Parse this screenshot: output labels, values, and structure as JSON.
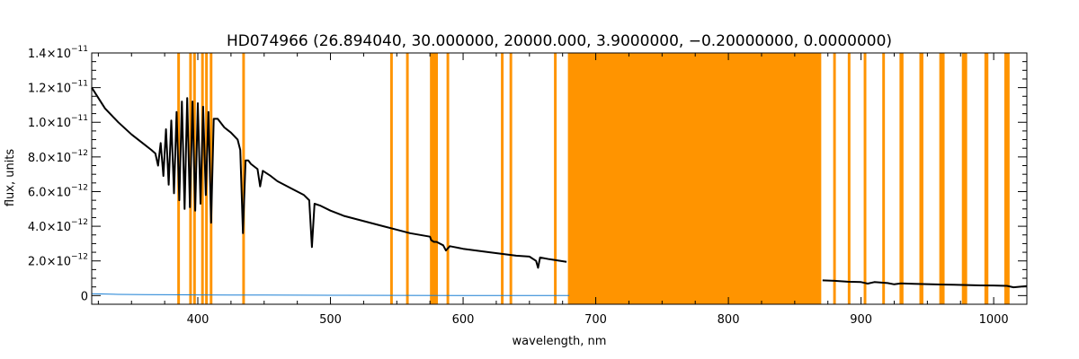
{
  "chart_data": {
    "type": "line",
    "title": "HD074966   (26.894040, 30.000000, 20000.000, 3.9000000, −0.20000000, 0.0000000)",
    "xlabel": "wavelength, nm",
    "ylabel": "flux, units",
    "xlim": [
      320,
      1025
    ],
    "ylim": [
      -5e-13,
      1.4e-11
    ],
    "x_ticks": [
      400,
      500,
      600,
      700,
      800,
      900,
      1000
    ],
    "x_tick_labels": [
      "400",
      "500",
      "600",
      "700",
      "800",
      "900",
      "1000"
    ],
    "y_ticks": [
      0,
      2e-12,
      4e-12,
      6e-12,
      8e-12,
      1e-11,
      1.2e-11,
      1.4e-11
    ],
    "y_tick_labels": [
      {
        "mant": "0",
        "exp": ""
      },
      {
        "mant": "2.0×10",
        "exp": "−12"
      },
      {
        "mant": "4.0×10",
        "exp": "−12"
      },
      {
        "mant": "6.0×10",
        "exp": "−12"
      },
      {
        "mant": "8.0×10",
        "exp": "−12"
      },
      {
        "mant": "1.0×10",
        "exp": "−11"
      },
      {
        "mant": "1.2×10",
        "exp": "−11"
      },
      {
        "mant": "1.4×10",
        "exp": "−11"
      }
    ],
    "colors": {
      "flux": "#000000",
      "error": "#1a7fd4",
      "mask": "#ff9400",
      "frame": "#000000"
    },
    "masked_regions": [
      [
        384.5,
        386.5
      ],
      [
        393.5,
        395.5
      ],
      [
        396.5,
        398.5
      ],
      [
        402.5,
        404.5
      ],
      [
        405.5,
        407.5
      ],
      [
        409,
        411
      ],
      [
        433.5,
        435.5
      ],
      [
        545,
        547
      ],
      [
        557,
        559
      ],
      [
        575,
        581
      ],
      [
        587.5,
        589.5
      ],
      [
        628.5,
        630.5
      ],
      [
        635,
        637
      ],
      [
        668.5,
        670.5
      ],
      [
        679,
        870
      ],
      [
        879,
        881
      ],
      [
        890,
        892
      ],
      [
        902,
        904
      ],
      [
        916,
        918
      ],
      [
        929,
        932
      ],
      [
        944,
        947
      ],
      [
        959,
        963
      ],
      [
        976,
        980
      ],
      [
        993,
        996
      ],
      [
        1008,
        1012
      ]
    ],
    "series": [
      {
        "role": "flux",
        "segments": [
          {
            "x": [
              320,
              330,
              340,
              350,
              360,
              365,
              368,
              370,
              372,
              374,
              376,
              378,
              380,
              382,
              384,
              386,
              388,
              390,
              392,
              394,
              396,
              398,
              400,
              402,
              404,
              406,
              408,
              410,
              412,
              415,
              420,
              425,
              430,
              432,
              434,
              436,
              438,
              440,
              445,
              447,
              449,
              455,
              460,
              470,
              480,
              484,
              486,
              488,
              492,
              500,
              510,
              520,
              540,
              560,
              575,
              576,
              578,
              580,
              585,
              587,
              590,
              600,
              620,
              640,
              650,
              655,
              656.5,
              658,
              665,
              678
            ],
            "y": [
              1.2e-11,
              1.08e-11,
              1e-11,
              9.3e-12,
              8.7e-12,
              8.4e-12,
              8.2e-12,
              7.5e-12,
              8.8e-12,
              6.9e-12,
              9.6e-12,
              6.4e-12,
              1.01e-11,
              5.9e-12,
              1.06e-11,
              5.5e-12,
              1.12e-11,
              5e-12,
              1.14e-11,
              5.1e-12,
              1.12e-11,
              4.9e-12,
              1.11e-11,
              5.3e-12,
              1.09e-11,
              5.8e-12,
              1.06e-11,
              4.2e-12,
              1.02e-11,
              1.02e-11,
              9.7e-12,
              9.4e-12,
              9e-12,
              8.4e-12,
              3.6e-12,
              7.8e-12,
              7.8e-12,
              7.6e-12,
              7.3e-12,
              6.3e-12,
              7.2e-12,
              6.9e-12,
              6.6e-12,
              6.2e-12,
              5.8e-12,
              5.5e-12,
              2.8e-12,
              5.3e-12,
              5.2e-12,
              4.9e-12,
              4.6e-12,
              4.4e-12,
              4e-12,
              3.6e-12,
              3.4e-12,
              3.2e-12,
              3.1e-12,
              3.1e-12,
              2.9e-12,
              2.6e-12,
              2.85e-12,
              2.7e-12,
              2.5e-12,
              2.3e-12,
              2.25e-12,
              2e-12,
              1.6e-12,
              2.2e-12,
              2.1e-12,
              1.95e-12
            ]
          },
          {
            "x": [
              871,
              880,
              890,
              900,
              905,
              910,
              920,
              925,
              930,
              940,
              950,
              960,
              970,
              980,
              990,
              1000,
              1010,
              1015,
              1025
            ],
            "y": [
              8.8e-13,
              8.5e-13,
              8e-13,
              7.8e-13,
              6.9e-13,
              7.8e-13,
              7.2e-13,
              6.5e-13,
              7e-13,
              6.8e-13,
              6.6e-13,
              6.4e-13,
              6.3e-13,
              6.1e-13,
              5.9e-13,
              5.8e-13,
              5.6e-13,
              4.8e-13,
              5.5e-13
            ]
          }
        ]
      },
      {
        "role": "error",
        "x": [
          320,
          330,
          340,
          360,
          380,
          400,
          450,
          500,
          550,
          600,
          650,
          680
        ],
        "y": [
          1.1e-13,
          9e-14,
          7e-14,
          6e-14,
          5e-14,
          4e-14,
          3e-14,
          2e-14,
          1.5e-14,
          1e-14,
          6e-15,
          5e-15
        ]
      }
    ]
  }
}
